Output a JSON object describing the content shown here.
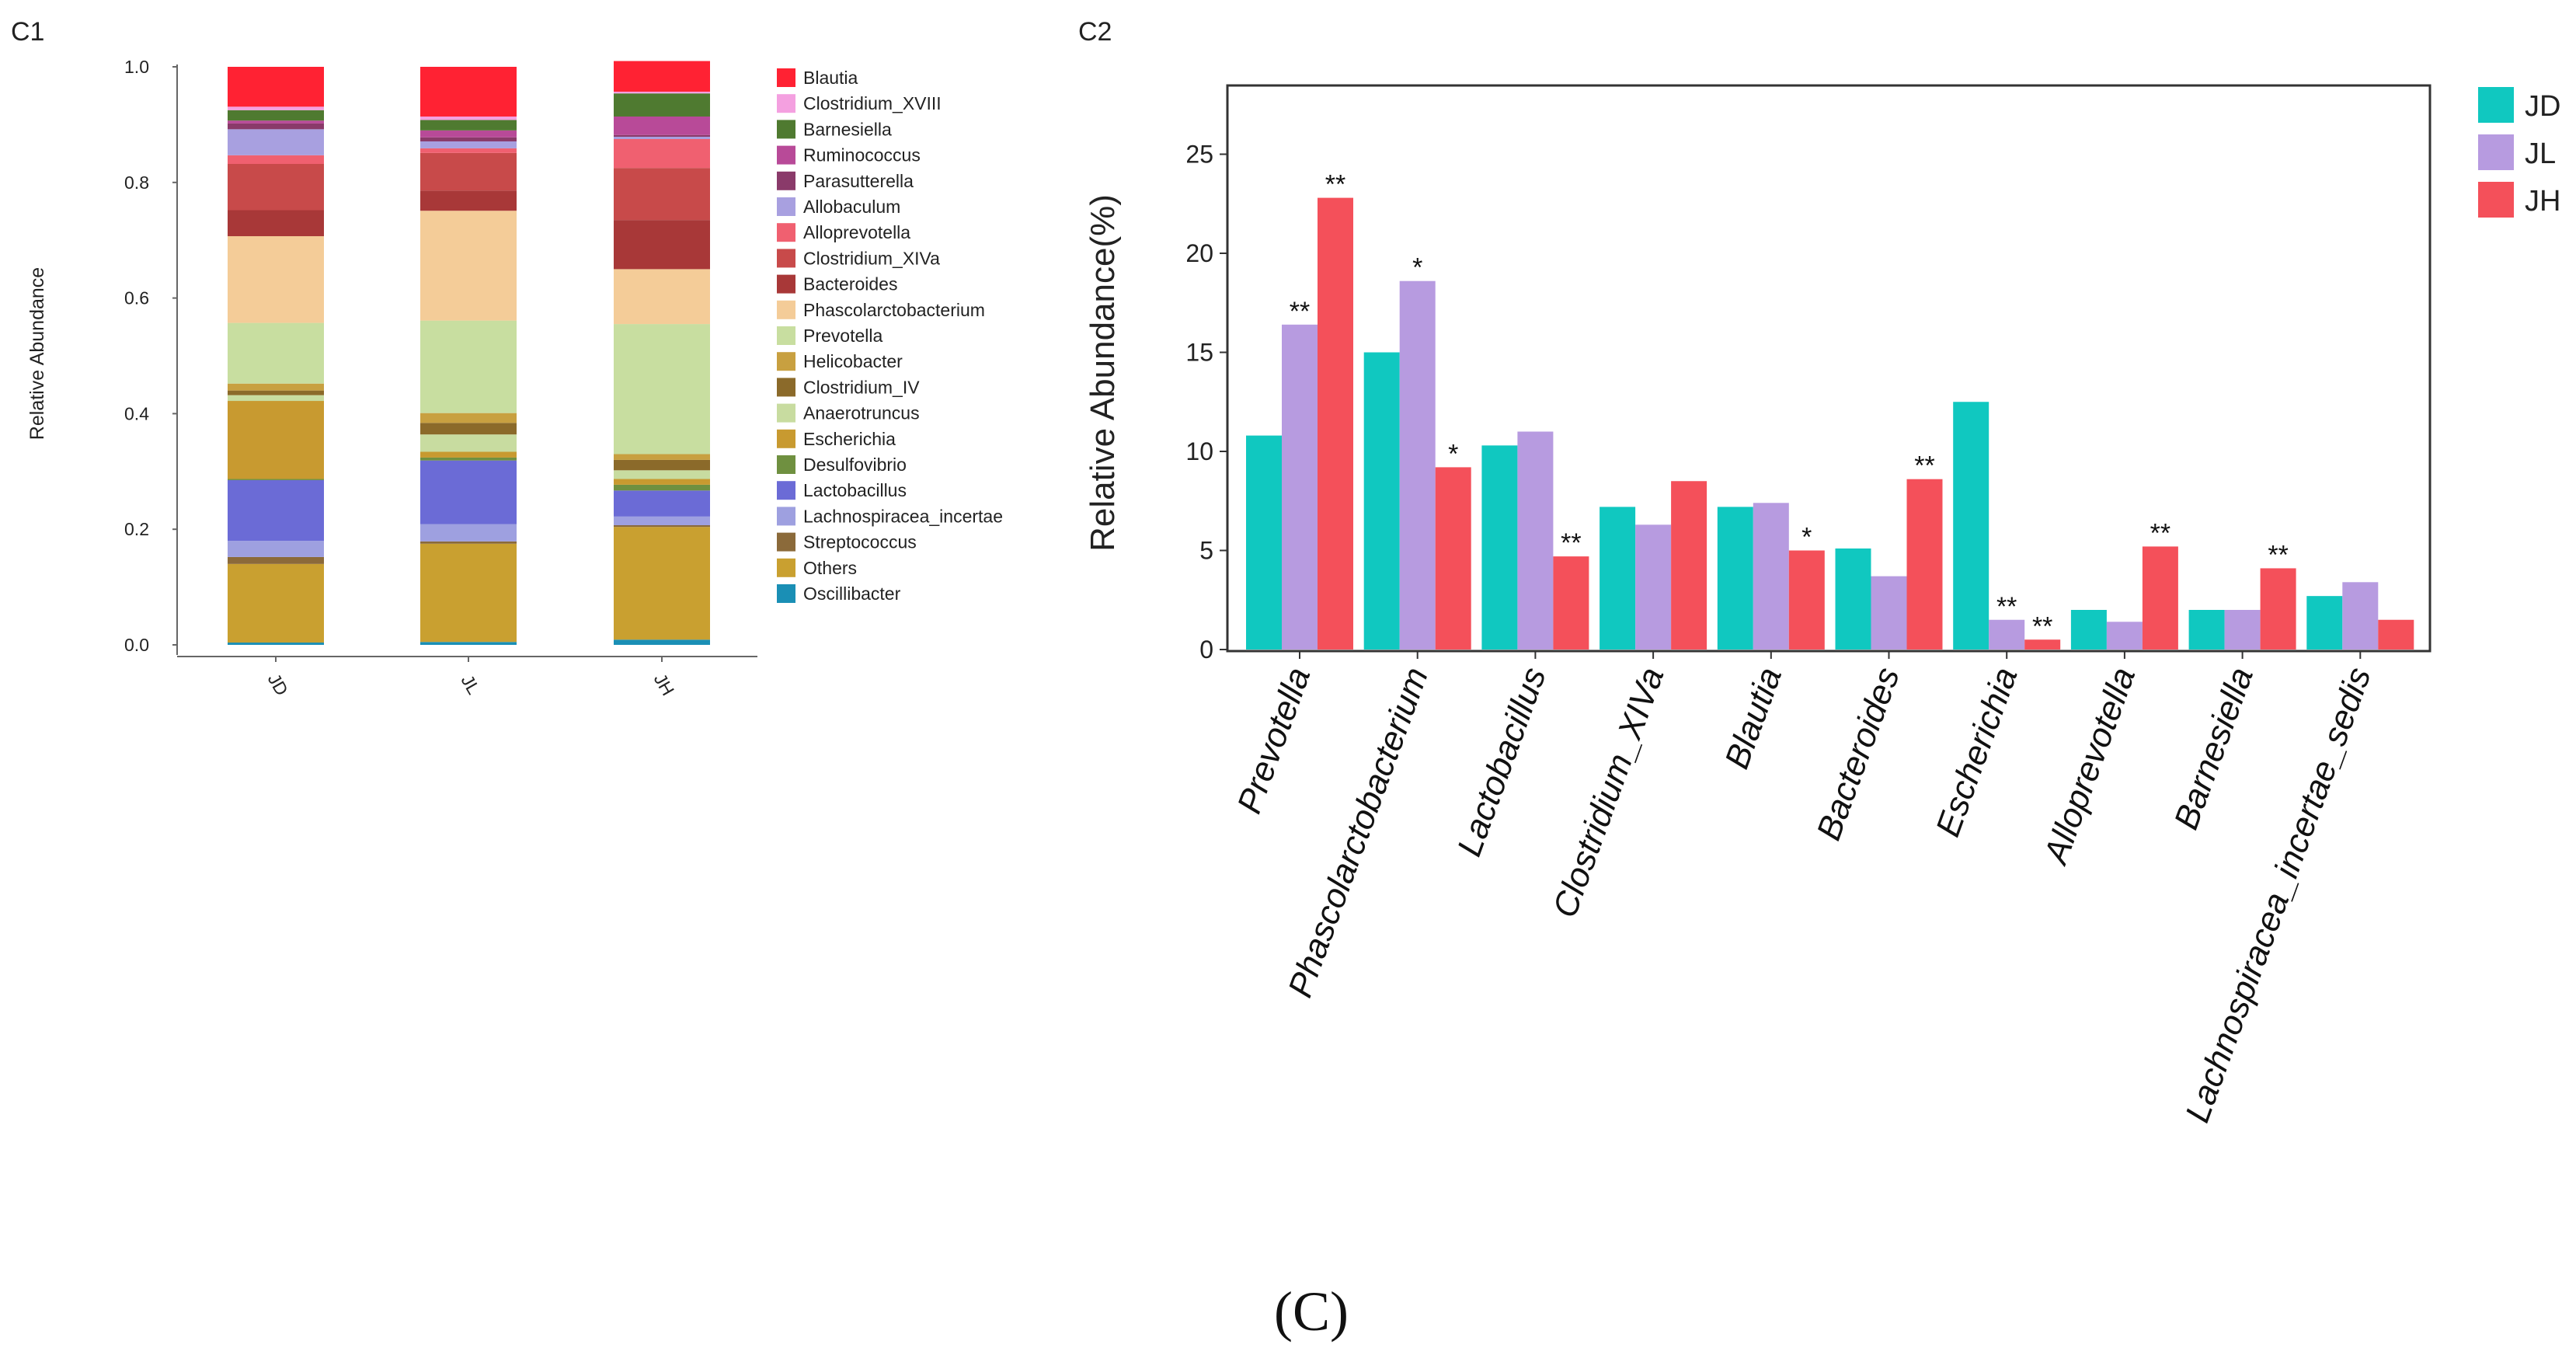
{
  "caption": "(C)",
  "colors": {
    "JD": "#10c8c0",
    "JL": "#b79be0",
    "JH": "#f4505a"
  },
  "chart_data": [
    {
      "panel": "C1",
      "type": "bar",
      "stacked": true,
      "ylabel": "Relative Abundance",
      "ylim": [
        0,
        1
      ],
      "yticks": [
        "0.0",
        "0.2",
        "0.4",
        "0.6",
        "0.8",
        "1.0"
      ],
      "categories": [
        "JD",
        "JL",
        "JH"
      ],
      "legend_position": "right",
      "series": [
        {
          "name": "Oscillibacter",
          "color": "#1a8fb5",
          "values": [
            0.004,
            0.005,
            0.009
          ]
        },
        {
          "name": "Others",
          "color": "#c9a030",
          "values": [
            0.136,
            0.17,
            0.195
          ]
        },
        {
          "name": "Streptococcus",
          "color": "#8b6a3a",
          "values": [
            0.012,
            0.004,
            0.003
          ]
        },
        {
          "name": "Lachnospiracea_incertae",
          "color": "#9ea0e0",
          "values": [
            0.028,
            0.03,
            0.015
          ]
        },
        {
          "name": "Lactobacillus",
          "color": "#6b6bd6",
          "values": [
            0.105,
            0.11,
            0.045
          ]
        },
        {
          "name": "Desulfovibrio",
          "color": "#6f9040",
          "values": [
            0.002,
            0.005,
            0.01
          ]
        },
        {
          "name": "Escherichia",
          "color": "#c89a30",
          "values": [
            0.135,
            0.01,
            0.01
          ]
        },
        {
          "name": "Anaerotruncus",
          "color": "#c8dca0",
          "values": [
            0.01,
            0.03,
            0.015
          ]
        },
        {
          "name": "Clostridium_IV",
          "color": "#8b6a2a",
          "values": [
            0.008,
            0.02,
            0.018
          ]
        },
        {
          "name": "Helicobacter",
          "color": "#c8a040",
          "values": [
            0.012,
            0.017,
            0.01
          ]
        },
        {
          "name": "Prevotella",
          "color": "#c8dea0",
          "values": [
            0.105,
            0.16,
            0.225
          ]
        },
        {
          "name": "Phascolarctobacterium",
          "color": "#f4cc98",
          "values": [
            0.15,
            0.19,
            0.095
          ]
        },
        {
          "name": "Bacteroides",
          "color": "#a83838",
          "values": [
            0.045,
            0.035,
            0.085
          ]
        },
        {
          "name": "Clostridium_XIVa",
          "color": "#c84a4a",
          "values": [
            0.08,
            0.065,
            0.09
          ]
        },
        {
          "name": "Alloprevotella",
          "color": "#f06070",
          "values": [
            0.015,
            0.008,
            0.05
          ]
        },
        {
          "name": "Allobaculum",
          "color": "#a8a0e0",
          "values": [
            0.045,
            0.012,
            0.004
          ]
        },
        {
          "name": "Parasutterella",
          "color": "#8a3a6a",
          "values": [
            0.01,
            0.007,
            0.003
          ]
        },
        {
          "name": "Ruminococcus",
          "color": "#b84a98",
          "values": [
            0.005,
            0.012,
            0.032
          ]
        },
        {
          "name": "Barnesiella",
          "color": "#4f7a30",
          "values": [
            0.018,
            0.018,
            0.04
          ]
        },
        {
          "name": "Clostridium_XVIII",
          "color": "#f4a0e0",
          "values": [
            0.006,
            0.006,
            0.003
          ]
        },
        {
          "name": "Blautia",
          "color": "#ff2233",
          "values": [
            0.069,
            0.086,
            0.053
          ]
        }
      ],
      "legend_order": [
        "Blautia",
        "Clostridium_XVIII",
        "Barnesiella",
        "Ruminococcus",
        "Parasutterella",
        "Allobaculum",
        "Alloprevotella",
        "Clostridium_XIVa",
        "Bacteroides",
        "Phascolarctobacterium",
        "Prevotella",
        "Helicobacter",
        "Clostridium_IV",
        "Anaerotruncus",
        "Escherichia",
        "Desulfovibrio",
        "Lactobacillus",
        "Lachnospiracea_incertae",
        "Streptococcus",
        "Others",
        "Oscillibacter"
      ]
    },
    {
      "panel": "C2",
      "type": "bar",
      "grouped": true,
      "ylabel": "Relative Abundance(%)",
      "ylim": [
        0,
        28
      ],
      "yticks": [
        "0",
        "5",
        "10",
        "15",
        "20",
        "25"
      ],
      "legend_position": "top-right",
      "categories": [
        "Prevotella",
        "Phascolarctobacterium",
        "Lactobacillus",
        "Clostridium_XIVa",
        "Blautia",
        "Bacteroides",
        "Escherichia",
        "Alloprevotella",
        "Barnesiella",
        "Lachnospiracea_incertae_sedis"
      ],
      "series": [
        {
          "name": "JD",
          "values": [
            10.8,
            15.0,
            10.3,
            7.2,
            7.2,
            5.1,
            12.5,
            2.0,
            2.0,
            2.7
          ],
          "sig": [
            "",
            "",
            "",
            "",
            "",
            "",
            "",
            "",
            "",
            ""
          ]
        },
        {
          "name": "JL",
          "values": [
            16.4,
            18.6,
            11.0,
            6.3,
            7.4,
            3.7,
            1.5,
            1.4,
            2.0,
            3.4
          ],
          "sig": [
            "**",
            "*",
            "",
            "",
            "",
            "",
            "**",
            "",
            "",
            ""
          ]
        },
        {
          "name": "JH",
          "values": [
            22.8,
            9.2,
            4.7,
            8.5,
            5.0,
            8.6,
            0.5,
            5.2,
            4.1,
            1.5
          ],
          "sig": [
            "**",
            "*",
            "**",
            "",
            "*",
            "**",
            "**",
            "**",
            "**",
            ""
          ]
        }
      ]
    }
  ]
}
